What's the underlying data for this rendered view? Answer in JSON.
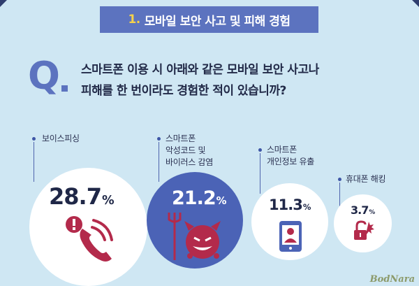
{
  "banner": {
    "number": "1.",
    "title": "모바일 보안 사고 및 피해 경험"
  },
  "question": {
    "marker": "Q",
    "line1": "스마트폰 이용 시 아래와 같은 모바일 보안 사고나",
    "line2": "피해를 한 번이라도 경험한 적이 있습니까?"
  },
  "items": [
    {
      "label_lines": [
        "보이스피싱"
      ],
      "value": "28.7",
      "unit": "%",
      "icon": "phone-warning-icon"
    },
    {
      "label_lines": [
        "스마트폰",
        "악성코드 및",
        "바이러스 감염"
      ],
      "value": "21.2",
      "unit": "%",
      "icon": "devil-virus-icon"
    },
    {
      "label_lines": [
        "스마트폰",
        "개인정보 유출"
      ],
      "value": "11.3",
      "unit": "%",
      "icon": "smartphone-user-icon"
    },
    {
      "label_lines": [
        "휴대폰 해킹"
      ],
      "value": "3.7",
      "unit": "%",
      "icon": "broken-lock-icon"
    }
  ],
  "chart_data": {
    "type": "bubble",
    "categories": [
      "보이스피싱",
      "스마트폰 악성코드 및 바이러스 감염",
      "스마트폰 개인정보 유출",
      "휴대폰 해킹"
    ],
    "values": [
      28.7,
      21.2,
      11.3,
      3.7
    ],
    "unit": "%"
  },
  "colors": {
    "background": "#cfe7f3",
    "accent": "#5c73bf",
    "danger": "#b32a4b",
    "circle": "#ffffff",
    "highlight": "#4b63b6"
  },
  "watermark": "BodNara"
}
